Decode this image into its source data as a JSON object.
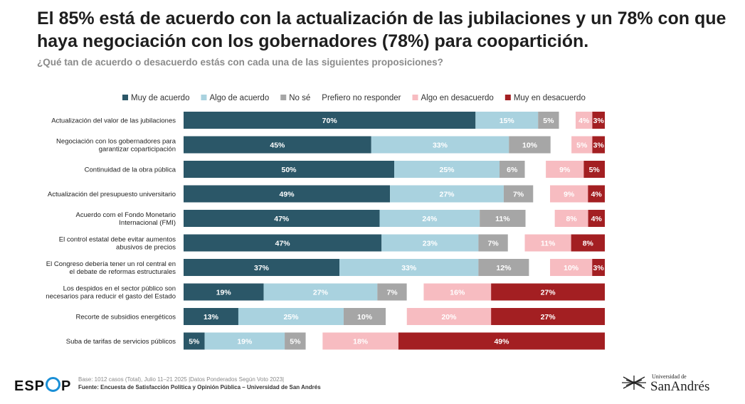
{
  "header": {
    "title": "El 85% está de acuerdo con la actualización de las jubilaciones y un 78% con que haya negociación con los gobernadores (78%) para coopartición.",
    "subtitle": "¿Qué tan de acuerdo o desacuerdo estás con cada una de las siguientes proposiciones?"
  },
  "chart_data": {
    "type": "bar",
    "orientation": "horizontal",
    "stacked": true,
    "legend_position": "top",
    "categories": [
      "Actualización del valor de las jubilaciones",
      "Negociación con los gobernadores para garantizar coparticipación",
      "Continuidad de la obra pública",
      "Actualización del presupuesto universitario",
      "Acuerdo com el Fondo Monetario Internacional (FMI)",
      "El control estatal debe evitar aumentos abusivos de precios",
      "El Congreso debería tener un rol central en el debate de reformas estructurales",
      "Los despidos en el sector público son necesarios para reducir el gasto del Estado",
      "Recorte de subsidios energéticos",
      "Suba de tarifas de servicios públicos"
    ],
    "series": [
      {
        "name": "Muy de acuerdo",
        "color": "#2b5768",
        "label_color": "#ffffff",
        "values": [
          70,
          45,
          50,
          49,
          47,
          47,
          37,
          19,
          13,
          5
        ]
      },
      {
        "name": "Algo de acuerdo",
        "color": "#a9d2df",
        "label_color": "#ffffff",
        "values": [
          15,
          33,
          25,
          27,
          24,
          23,
          33,
          27,
          25,
          19
        ]
      },
      {
        "name": "No sé",
        "color": "#a6a6a6",
        "label_color": "#ffffff",
        "values": [
          5,
          10,
          6,
          7,
          11,
          7,
          12,
          7,
          10,
          5
        ]
      },
      {
        "name": "Prefiero no responder",
        "color": "#ffffff",
        "label_color": "#ffffff",
        "values": [
          4,
          5,
          5,
          4,
          7,
          4,
          5,
          4,
          5,
          4
        ]
      },
      {
        "name": "Algo en desacuerdo",
        "color": "#f7bcc1",
        "label_color": "#ffffff",
        "values": [
          4,
          5,
          9,
          9,
          8,
          11,
          10,
          16,
          20,
          18
        ]
      },
      {
        "name": "Muy en desacuerdo",
        "color": "#a31f22",
        "label_color": "#ffffff",
        "values": [
          3,
          3,
          5,
          4,
          4,
          8,
          3,
          27,
          27,
          49
        ]
      }
    ],
    "xlim": [
      0,
      100
    ],
    "grid": false
  },
  "footer": {
    "logo_text": [
      "ESP",
      "P"
    ],
    "base": "Base: 1012 casos (Total), Julio 11–21 2025 |Datos Ponderados Según Voto 2023|",
    "source": "Fuente: Encuesta de Satisfacción Política y Opinión Pública – Universidad de San Andrés",
    "university_small": "Universidad de",
    "university_name": "SanAndrés"
  }
}
